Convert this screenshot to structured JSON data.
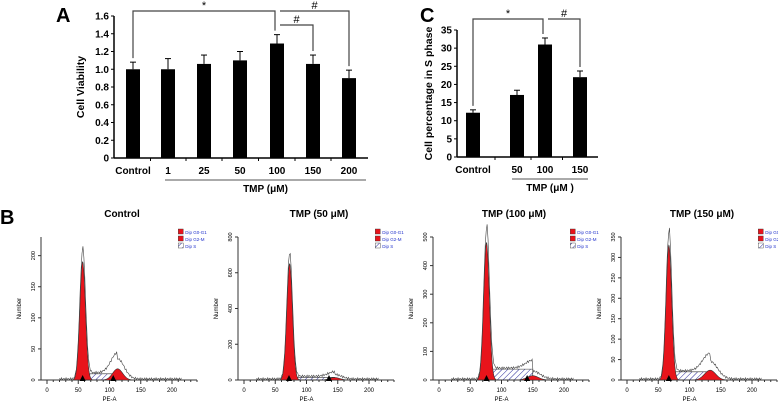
{
  "panel_labels": {
    "a": "A",
    "b": "B",
    "c": "C"
  },
  "chart_data": [
    {
      "id": "A",
      "type": "bar",
      "title": "",
      "xlabel": "TMP (μM)",
      "ylabel": "Cell Viability",
      "categories": [
        "Control",
        "1",
        "25",
        "50",
        "100",
        "150",
        "200"
      ],
      "values": [
        1.0,
        1.0,
        1.06,
        1.1,
        1.29,
        1.06,
        0.9
      ],
      "errors": [
        0.08,
        0.12,
        0.1,
        0.1,
        0.1,
        0.1,
        0.09
      ],
      "yticks": [
        "0",
        "0.2",
        "0.4",
        "0.6",
        "0.8",
        "1.0",
        "1.2",
        "1.4",
        "1.6"
      ],
      "ylim": [
        0,
        1.6
      ],
      "significance": [
        {
          "from": 0,
          "to": 4,
          "label": "*"
        },
        {
          "from": 4,
          "to": 5,
          "label": "#"
        },
        {
          "from": 4,
          "to": 6,
          "label": "#"
        }
      ]
    },
    {
      "id": "C",
      "type": "bar",
      "xlabel": "TMP (μM )",
      "ylabel": "Cell percentage in S phase",
      "categories": [
        "Control",
        "50",
        "100",
        "150"
      ],
      "values": [
        12.2,
        17.1,
        31.0,
        22.0
      ],
      "errors": [
        0.8,
        1.3,
        1.8,
        1.7
      ],
      "yticks": [
        "0",
        "5",
        "10",
        "15",
        "20",
        "25",
        "30",
        "35"
      ],
      "ylim": [
        0,
        35
      ],
      "significance": [
        {
          "from": 0,
          "to": 2,
          "label": "*"
        },
        {
          "from": 2,
          "to": 3,
          "label": "#"
        }
      ]
    },
    {
      "id": "B",
      "type": "histogram",
      "xlabel": "PE-A",
      "ylabel": "Number",
      "xticks": [
        "0",
        "50",
        "100",
        "150",
        "200"
      ],
      "xlim": [
        0,
        240
      ],
      "legend": [
        "Dip G0-G1",
        "Dip G2-M",
        "Dip S"
      ],
      "colors": {
        "g1": "#e8141b",
        "g2": "#e8141b",
        "s": "#2b2b9a",
        "legend_text": "#2233cc"
      },
      "panels": [
        {
          "title": "Control",
          "ymax": 230,
          "yticks": [
            0,
            50,
            100,
            150,
            200
          ],
          "g1_mean": 57,
          "g1_height": 190,
          "g1_sd": 4.5,
          "g2_mean": 113,
          "g2_height": 18,
          "g2_sd": 8,
          "s_level": 10,
          "markers": [
            57,
            106
          ]
        },
        {
          "title": "TMP (50 μM)",
          "ymax": 800,
          "yticks": [
            0,
            200,
            400,
            600,
            800
          ],
          "g1_mean": 73,
          "g1_height": 650,
          "g1_sd": 4.5,
          "g2_mean": 145,
          "g2_height": 14,
          "g2_sd": 8,
          "s_level": 15,
          "markers": [
            72,
            136
          ]
        },
        {
          "title": "TMP (100 μM)",
          "ymax": 500,
          "yticks": [
            0,
            100,
            200,
            300,
            400,
            500
          ],
          "g1_mean": 76,
          "g1_height": 480,
          "g1_sd": 4.5,
          "g2_mean": 150,
          "g2_height": 15,
          "g2_sd": 9,
          "s_level": 38,
          "markers": [
            76,
            141
          ]
        },
        {
          "title": "TMP (150 μM)",
          "ymax": 350,
          "yticks": [
            0,
            50,
            100,
            150,
            200,
            250,
            300,
            350
          ],
          "g1_mean": 67,
          "g1_height": 330,
          "g1_sd": 4.5,
          "g2_mean": 133,
          "g2_height": 24,
          "g2_sd": 9,
          "s_level": 20,
          "markers": [
            67
          ]
        }
      ]
    }
  ]
}
